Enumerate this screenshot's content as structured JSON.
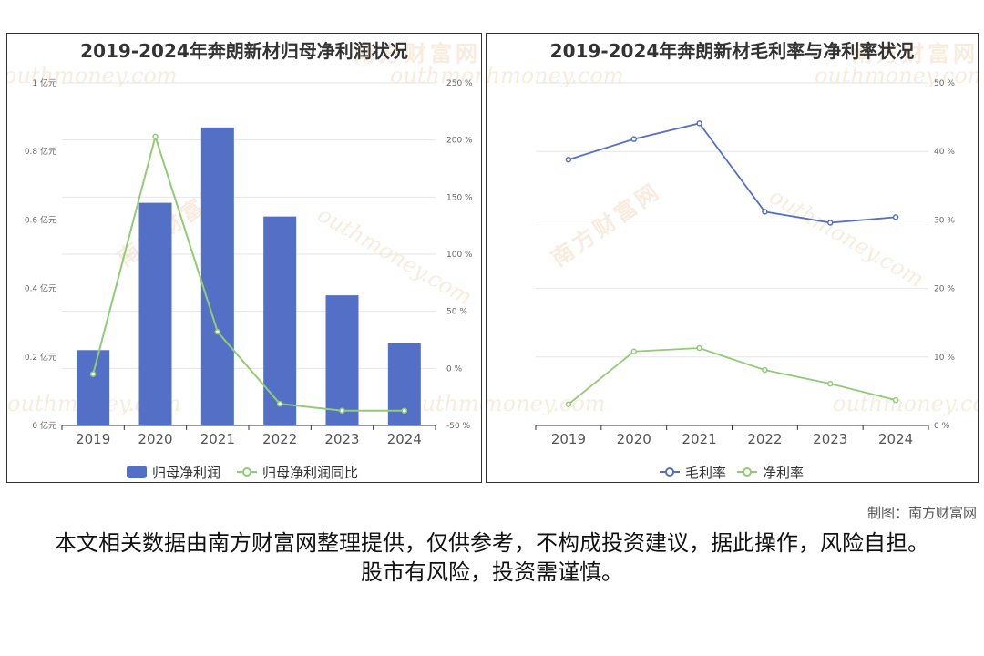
{
  "credit": "制图：南方财富网",
  "disclaimer": "本文相关数据由南方财富网整理提供，仅供参考，不构成投资建议，据此操作，风险自担。股市有风险，投资需谨慎。",
  "watermark": {
    "cn": "南方财富网",
    "en": "outhmoney.com"
  },
  "colors": {
    "blue": "#5470c6",
    "green": "#91cc75",
    "grid": "#e6e6e6",
    "axis": "#333333",
    "tick": "#666666"
  },
  "chart_data": [
    {
      "type": "bar",
      "title": "2019-2024年奔朗新材归母净利润状况",
      "categories": [
        "2019",
        "2020",
        "2021",
        "2022",
        "2023",
        "2024"
      ],
      "series": [
        {
          "name": "归母净利润",
          "type": "bar",
          "axis": "left",
          "values": [
            0.22,
            0.65,
            0.87,
            0.61,
            0.38,
            0.24
          ]
        },
        {
          "name": "归母净利润同比",
          "type": "line",
          "axis": "right",
          "values": [
            -5,
            203,
            32,
            -31,
            -37,
            -37
          ]
        }
      ],
      "yAxisLeft": {
        "min": 0,
        "max": 1,
        "ticks": [
          "0 亿元",
          "0.2 亿元",
          "0.4 亿元",
          "0.6 亿元",
          "0.8 亿元",
          "1 亿元"
        ]
      },
      "yAxisRight": {
        "min": -50,
        "max": 250,
        "ticks": [
          "-50 %",
          "0 %",
          "50 %",
          "100 %",
          "150 %",
          "200 %",
          "250 %"
        ]
      },
      "grid": true,
      "legend": "bottom-center"
    },
    {
      "type": "line",
      "title": "2019-2024年奔朗新材毛利率与净利率状况",
      "categories": [
        "2019",
        "2020",
        "2021",
        "2022",
        "2023",
        "2024"
      ],
      "series": [
        {
          "name": "毛利率",
          "values": [
            38.8,
            41.8,
            44.1,
            31.2,
            29.6,
            30.4
          ]
        },
        {
          "name": "净利率",
          "values": [
            3.1,
            10.8,
            11.3,
            8.1,
            6.1,
            3.7
          ]
        }
      ],
      "yAxisRight": {
        "min": 0,
        "max": 50,
        "ticks": [
          "0 %",
          "10 %",
          "20 %",
          "30 %",
          "40 %",
          "50 %"
        ]
      },
      "grid": true,
      "legend": "bottom-center"
    }
  ]
}
